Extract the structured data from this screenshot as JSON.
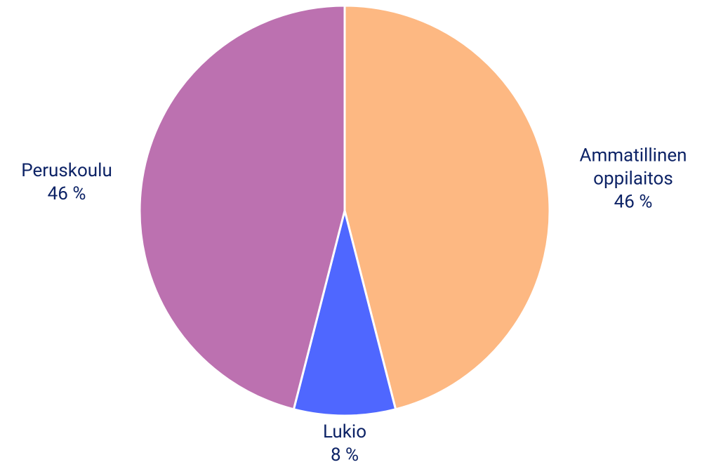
{
  "chart_data": {
    "type": "pie",
    "categories": [
      "Ammatillinen oppilaitos",
      "Lukio",
      "Peruskoulu"
    ],
    "values": [
      46,
      8,
      46
    ],
    "value_labels": [
      "46 %",
      "8 %",
      "46 %"
    ],
    "colors": [
      "#fdb882",
      "#4f67ff",
      "#bc71b0"
    ]
  }
}
